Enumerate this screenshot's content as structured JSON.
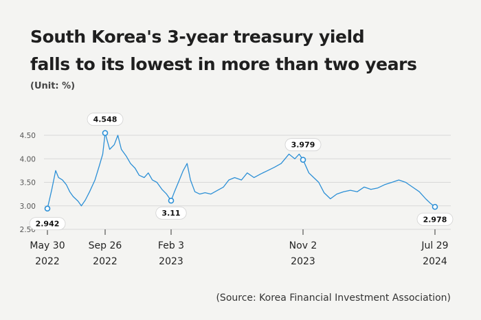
{
  "title_line1": "South Korea's 3-year treasury yield",
  "title_line2": "falls to its lowest in more than two years",
  "unit": "(Unit: %)",
  "source": "(Source: Korea Financial Investment Association)",
  "colors": {
    "line": "#2b8fd6",
    "grid": "#d8d8d8",
    "marker_fill": "#ffffff",
    "background": "#f4f4f2"
  },
  "chart_data": {
    "type": "line",
    "title": "South Korea's 3-year treasury yield falls to its lowest in more than two years",
    "ylabel": "(Unit: %)",
    "ylim": [
      2.5,
      4.5
    ],
    "y_ticks": [
      "2.50",
      "3.00",
      "3.50",
      "4.00",
      "4.50"
    ],
    "x_ticks": [
      {
        "date": "2022-05-30",
        "line1": "May 30",
        "line2": "2022"
      },
      {
        "date": "2022-09-26",
        "line1": "Sep 26",
        "line2": "2022"
      },
      {
        "date": "2023-02-03",
        "line1": "Feb 3",
        "line2": "2023"
      },
      {
        "date": "2023-11-02",
        "line1": "Nov 2",
        "line2": "2023"
      },
      {
        "date": "2024-07-29",
        "line1": "Jul 29",
        "line2": "2024"
      }
    ],
    "annotations": [
      {
        "date": "2022-05-30",
        "value": 2.942,
        "label": "2.942"
      },
      {
        "date": "2022-09-26",
        "value": 4.548,
        "label": "4.548"
      },
      {
        "date": "2023-02-03",
        "value": 3.11,
        "label": "3.11"
      },
      {
        "date": "2023-11-02",
        "value": 3.979,
        "label": "3.979"
      },
      {
        "date": "2024-07-29",
        "value": 2.978,
        "label": "2.978"
      }
    ],
    "series": [
      {
        "values": [
          [
            "2022-05-30",
            2.942
          ],
          [
            "2022-06-08",
            3.35
          ],
          [
            "2022-06-16",
            3.75
          ],
          [
            "2022-06-22",
            3.6
          ],
          [
            "2022-06-30",
            3.55
          ],
          [
            "2022-07-08",
            3.45
          ],
          [
            "2022-07-15",
            3.3
          ],
          [
            "2022-07-22",
            3.2
          ],
          [
            "2022-08-01",
            3.1
          ],
          [
            "2022-08-08",
            3.0
          ],
          [
            "2022-08-16",
            3.12
          ],
          [
            "2022-08-25",
            3.3
          ],
          [
            "2022-09-05",
            3.55
          ],
          [
            "2022-09-14",
            3.85
          ],
          [
            "2022-09-21",
            4.1
          ],
          [
            "2022-09-26",
            4.548
          ],
          [
            "2022-10-05",
            4.2
          ],
          [
            "2022-10-14",
            4.3
          ],
          [
            "2022-10-21",
            4.5
          ],
          [
            "2022-10-28",
            4.2
          ],
          [
            "2022-11-07",
            4.05
          ],
          [
            "2022-11-15",
            3.9
          ],
          [
            "2022-11-24",
            3.8
          ],
          [
            "2022-12-02",
            3.65
          ],
          [
            "2022-12-12",
            3.6
          ],
          [
            "2022-12-20",
            3.7
          ],
          [
            "2022-12-28",
            3.55
          ],
          [
            "2023-01-06",
            3.5
          ],
          [
            "2023-01-16",
            3.35
          ],
          [
            "2023-01-25",
            3.25
          ],
          [
            "2023-02-03",
            3.11
          ],
          [
            "2023-02-10",
            3.3
          ],
          [
            "2023-02-20",
            3.55
          ],
          [
            "2023-02-28",
            3.75
          ],
          [
            "2023-03-08",
            3.9
          ],
          [
            "2023-03-15",
            3.55
          ],
          [
            "2023-03-24",
            3.3
          ],
          [
            "2023-04-03",
            3.25
          ],
          [
            "2023-04-14",
            3.28
          ],
          [
            "2023-04-26",
            3.25
          ],
          [
            "2023-05-08",
            3.32
          ],
          [
            "2023-05-22",
            3.4
          ],
          [
            "2023-06-02",
            3.55
          ],
          [
            "2023-06-14",
            3.6
          ],
          [
            "2023-06-28",
            3.55
          ],
          [
            "2023-07-10",
            3.7
          ],
          [
            "2023-07-24",
            3.6
          ],
          [
            "2023-08-07",
            3.68
          ],
          [
            "2023-08-21",
            3.75
          ],
          [
            "2023-09-04",
            3.82
          ],
          [
            "2023-09-18",
            3.9
          ],
          [
            "2023-10-04",
            4.1
          ],
          [
            "2023-10-16",
            4.0
          ],
          [
            "2023-10-25",
            4.1
          ],
          [
            "2023-11-02",
            3.979
          ],
          [
            "2023-11-14",
            3.7
          ],
          [
            "2023-11-24",
            3.6
          ],
          [
            "2023-12-04",
            3.5
          ],
          [
            "2023-12-15",
            3.28
          ],
          [
            "2023-12-28",
            3.15
          ],
          [
            "2024-01-10",
            3.25
          ],
          [
            "2024-01-24",
            3.3
          ],
          [
            "2024-02-07",
            3.33
          ],
          [
            "2024-02-21",
            3.3
          ],
          [
            "2024-03-06",
            3.4
          ],
          [
            "2024-03-20",
            3.35
          ],
          [
            "2024-04-03",
            3.38
          ],
          [
            "2024-04-17",
            3.45
          ],
          [
            "2024-05-02",
            3.5
          ],
          [
            "2024-05-16",
            3.55
          ],
          [
            "2024-05-30",
            3.5
          ],
          [
            "2024-06-13",
            3.4
          ],
          [
            "2024-06-27",
            3.3
          ],
          [
            "2024-07-10",
            3.15
          ],
          [
            "2024-07-20",
            3.05
          ],
          [
            "2024-07-29",
            2.978
          ]
        ]
      }
    ]
  }
}
